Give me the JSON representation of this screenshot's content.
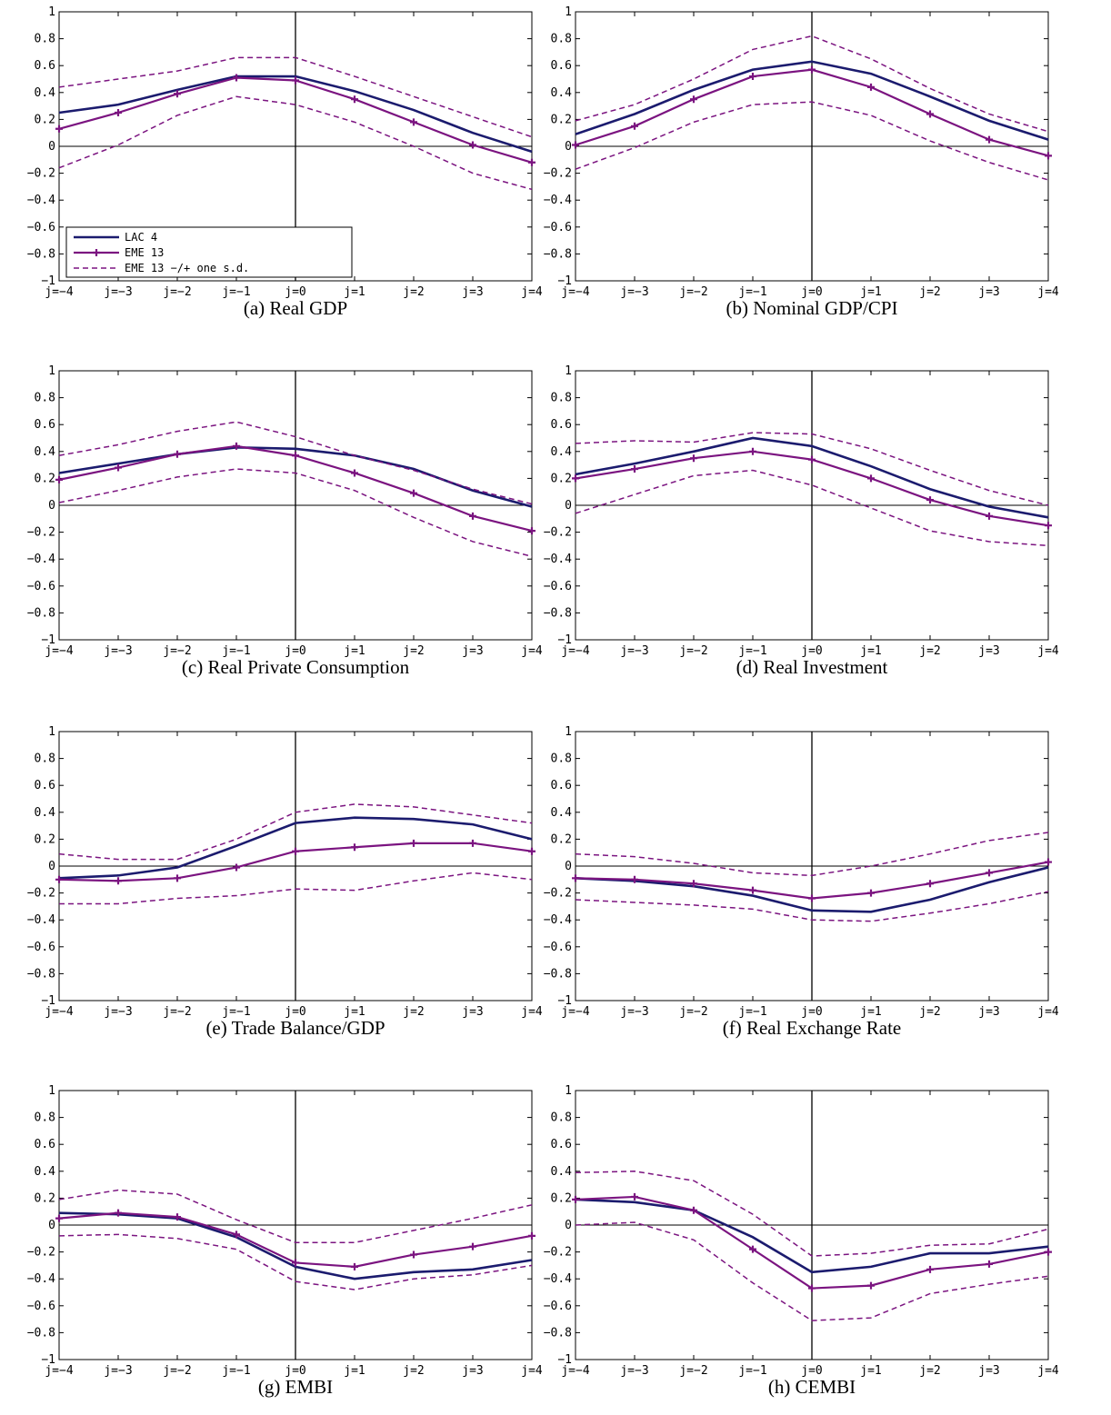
{
  "colors": {
    "lac": "#1b1b6e",
    "eme": "#7b1480",
    "band": "#7b1480",
    "axis": "#000000"
  },
  "legend": {
    "placement": "bottom-left",
    "panel": 0,
    "entries": [
      "LAC 4",
      "EME 13",
      "EME 13 −/+ one s.d."
    ]
  },
  "chart_data": [
    {
      "type": "line",
      "caption": "(a) Real GDP",
      "x": [
        "j=−4",
        "j=−3",
        "j=−2",
        "j=−1",
        "j=0",
        "j=1",
        "j=2",
        "j=3",
        "j=4"
      ],
      "y_ticks": [
        "−1",
        "−0.8",
        "−0.6",
        "−0.4",
        "−0.2",
        "0",
        "0.2",
        "0.4",
        "0.6",
        "0.8",
        "1"
      ],
      "ylim": [
        -1,
        1
      ],
      "series": [
        {
          "name": "LAC 4",
          "style": "solid",
          "values": [
            0.25,
            0.31,
            0.42,
            0.52,
            0.52,
            0.41,
            0.27,
            0.1,
            -0.04
          ]
        },
        {
          "name": "EME 13",
          "style": "marker",
          "values": [
            0.13,
            0.25,
            0.39,
            0.51,
            0.49,
            0.35,
            0.18,
            0.01,
            -0.12
          ]
        },
        {
          "name": "EME 13 −/+ one s.d.",
          "style": "dashed",
          "values": [
            0.44,
            0.5,
            0.56,
            0.66,
            0.66,
            0.52,
            0.37,
            0.22,
            0.07
          ]
        },
        {
          "name": "",
          "style": "dashed",
          "values": [
            -0.16,
            0.01,
            0.23,
            0.37,
            0.31,
            0.18,
            0.0,
            -0.2,
            -0.32
          ]
        }
      ]
    },
    {
      "type": "line",
      "caption": "(b) Nominal GDP/CPI",
      "x": [
        "j=−4",
        "j=−3",
        "j=−2",
        "j=−1",
        "j=0",
        "j=1",
        "j=2",
        "j=3",
        "j=4"
      ],
      "y_ticks": [
        "−1",
        "−0.8",
        "−0.6",
        "−0.4",
        "−0.2",
        "0",
        "0.2",
        "0.4",
        "0.6",
        "0.8",
        "1"
      ],
      "ylim": [
        -1,
        1
      ],
      "series": [
        {
          "name": "LAC 4",
          "style": "solid",
          "values": [
            0.09,
            0.24,
            0.42,
            0.57,
            0.63,
            0.54,
            0.37,
            0.19,
            0.05
          ]
        },
        {
          "name": "EME 13",
          "style": "marker",
          "values": [
            0.01,
            0.15,
            0.35,
            0.52,
            0.57,
            0.44,
            0.24,
            0.05,
            -0.07
          ]
        },
        {
          "name": "",
          "style": "dashed",
          "values": [
            0.19,
            0.31,
            0.5,
            0.72,
            0.82,
            0.65,
            0.43,
            0.24,
            0.11
          ]
        },
        {
          "name": "",
          "style": "dashed",
          "values": [
            -0.17,
            -0.01,
            0.18,
            0.31,
            0.33,
            0.23,
            0.04,
            -0.12,
            -0.25
          ]
        }
      ]
    },
    {
      "type": "line",
      "caption": "(c) Real Private Consumption",
      "x": [
        "j=−4",
        "j=−3",
        "j=−2",
        "j=−1",
        "j=0",
        "j=1",
        "j=2",
        "j=3",
        "j=4"
      ],
      "y_ticks": [
        "−1",
        "−0.8",
        "−0.6",
        "−0.4",
        "−0.2",
        "0",
        "0.2",
        "0.4",
        "0.6",
        "0.8",
        "1"
      ],
      "ylim": [
        -1,
        1
      ],
      "series": [
        {
          "name": "LAC 4",
          "style": "solid",
          "values": [
            0.24,
            0.31,
            0.38,
            0.43,
            0.42,
            0.37,
            0.27,
            0.11,
            -0.01
          ]
        },
        {
          "name": "EME 13",
          "style": "marker",
          "values": [
            0.19,
            0.28,
            0.38,
            0.44,
            0.37,
            0.24,
            0.09,
            -0.08,
            -0.19
          ]
        },
        {
          "name": "",
          "style": "dashed",
          "values": [
            0.37,
            0.45,
            0.55,
            0.62,
            0.51,
            0.37,
            0.26,
            0.12,
            0.01
          ]
        },
        {
          "name": "",
          "style": "dashed",
          "values": [
            0.02,
            0.11,
            0.21,
            0.27,
            0.24,
            0.11,
            -0.09,
            -0.27,
            -0.38
          ]
        }
      ]
    },
    {
      "type": "line",
      "caption": "(d) Real Investment",
      "x": [
        "j=−4",
        "j=−3",
        "j=−2",
        "j=−1",
        "j=0",
        "j=1",
        "j=2",
        "j=3",
        "j=4"
      ],
      "y_ticks": [
        "−1",
        "−0.8",
        "−0.6",
        "−0.4",
        "−0.2",
        "0",
        "0.2",
        "0.4",
        "0.6",
        "0.8",
        "1"
      ],
      "ylim": [
        -1,
        1
      ],
      "series": [
        {
          "name": "LAC 4",
          "style": "solid",
          "values": [
            0.23,
            0.31,
            0.4,
            0.5,
            0.44,
            0.29,
            0.12,
            -0.01,
            -0.09
          ]
        },
        {
          "name": "EME 13",
          "style": "marker",
          "values": [
            0.2,
            0.27,
            0.35,
            0.4,
            0.34,
            0.2,
            0.04,
            -0.08,
            -0.15
          ]
        },
        {
          "name": "",
          "style": "dashed",
          "values": [
            0.46,
            0.48,
            0.47,
            0.54,
            0.53,
            0.42,
            0.26,
            0.11,
            0.0
          ]
        },
        {
          "name": "",
          "style": "dashed",
          "values": [
            -0.06,
            0.08,
            0.22,
            0.26,
            0.15,
            -0.02,
            -0.19,
            -0.27,
            -0.3
          ]
        }
      ]
    },
    {
      "type": "line",
      "caption": "(e) Trade Balance/GDP",
      "x": [
        "j=−4",
        "j=−3",
        "j=−2",
        "j=−1",
        "j=0",
        "j=1",
        "j=2",
        "j=3",
        "j=4"
      ],
      "y_ticks": [
        "−1",
        "−0.8",
        "−0.6",
        "−0.4",
        "−0.2",
        "0",
        "0.2",
        "0.4",
        "0.6",
        "0.8",
        "1"
      ],
      "ylim": [
        -1,
        1
      ],
      "series": [
        {
          "name": "LAC 4",
          "style": "solid",
          "values": [
            -0.09,
            -0.07,
            -0.01,
            0.15,
            0.32,
            0.36,
            0.35,
            0.31,
            0.2
          ]
        },
        {
          "name": "EME 13",
          "style": "marker",
          "values": [
            -0.1,
            -0.11,
            -0.09,
            -0.01,
            0.11,
            0.14,
            0.17,
            0.17,
            0.11
          ]
        },
        {
          "name": "",
          "style": "dashed",
          "values": [
            0.09,
            0.05,
            0.05,
            0.2,
            0.4,
            0.46,
            0.44,
            0.38,
            0.32
          ]
        },
        {
          "name": "",
          "style": "dashed",
          "values": [
            -0.28,
            -0.28,
            -0.24,
            -0.22,
            -0.17,
            -0.18,
            -0.11,
            -0.05,
            -0.1
          ]
        }
      ]
    },
    {
      "type": "line",
      "caption": "(f) Real Exchange Rate",
      "x": [
        "j=−4",
        "j=−3",
        "j=−2",
        "j=−1",
        "j=0",
        "j=1",
        "j=2",
        "j=3",
        "j=4"
      ],
      "y_ticks": [
        "−1",
        "−0.8",
        "−0.6",
        "−0.4",
        "−0.2",
        "0",
        "0.2",
        "0.4",
        "0.6",
        "0.8",
        "1"
      ],
      "ylim": [
        -1,
        1
      ],
      "series": [
        {
          "name": "LAC 4",
          "style": "solid",
          "values": [
            -0.09,
            -0.11,
            -0.15,
            -0.22,
            -0.33,
            -0.34,
            -0.25,
            -0.12,
            -0.01
          ]
        },
        {
          "name": "EME 13",
          "style": "marker",
          "values": [
            -0.09,
            -0.1,
            -0.13,
            -0.18,
            -0.24,
            -0.2,
            -0.13,
            -0.05,
            0.03
          ]
        },
        {
          "name": "",
          "style": "dashed",
          "values": [
            0.09,
            0.07,
            0.02,
            -0.05,
            -0.07,
            0.0,
            0.09,
            0.19,
            0.25
          ]
        },
        {
          "name": "",
          "style": "dashed",
          "values": [
            -0.25,
            -0.27,
            -0.29,
            -0.32,
            -0.4,
            -0.41,
            -0.35,
            -0.28,
            -0.19
          ]
        }
      ]
    },
    {
      "type": "line",
      "caption": "(g) EMBI",
      "x": [
        "j=−4",
        "j=−3",
        "j=−2",
        "j=−1",
        "j=0",
        "j=1",
        "j=2",
        "j=3",
        "j=4"
      ],
      "y_ticks": [
        "−1",
        "−0.8",
        "−0.6",
        "−0.4",
        "−0.2",
        "0",
        "0.2",
        "0.4",
        "0.6",
        "0.8",
        "1"
      ],
      "ylim": [
        -1,
        1
      ],
      "series": [
        {
          "name": "LAC 4",
          "style": "solid",
          "values": [
            0.09,
            0.08,
            0.05,
            -0.09,
            -0.31,
            -0.4,
            -0.35,
            -0.33,
            -0.26
          ]
        },
        {
          "name": "EME 13",
          "style": "marker",
          "values": [
            0.05,
            0.09,
            0.06,
            -0.07,
            -0.28,
            -0.31,
            -0.22,
            -0.16,
            -0.08
          ]
        },
        {
          "name": "",
          "style": "dashed",
          "values": [
            0.19,
            0.26,
            0.23,
            0.04,
            -0.13,
            -0.13,
            -0.04,
            0.05,
            0.15
          ]
        },
        {
          "name": "",
          "style": "dashed",
          "values": [
            -0.08,
            -0.07,
            -0.1,
            -0.18,
            -0.42,
            -0.48,
            -0.4,
            -0.37,
            -0.3
          ]
        }
      ]
    },
    {
      "type": "line",
      "caption": "(h) CEMBI",
      "x": [
        "j=−4",
        "j=−3",
        "j=−2",
        "j=−1",
        "j=0",
        "j=1",
        "j=2",
        "j=3",
        "j=4"
      ],
      "y_ticks": [
        "−1",
        "−0.8",
        "−0.6",
        "−0.4",
        "−0.2",
        "0",
        "0.2",
        "0.4",
        "0.6",
        "0.8",
        "1"
      ],
      "ylim": [
        -1,
        1
      ],
      "series": [
        {
          "name": "LAC 4",
          "style": "solid",
          "values": [
            0.19,
            0.17,
            0.11,
            -0.09,
            -0.35,
            -0.31,
            -0.21,
            -0.21,
            -0.16
          ]
        },
        {
          "name": "EME 13",
          "style": "marker",
          "values": [
            0.19,
            0.21,
            0.11,
            -0.18,
            -0.47,
            -0.45,
            -0.33,
            -0.29,
            -0.2
          ]
        },
        {
          "name": "",
          "style": "dashed",
          "values": [
            0.39,
            0.4,
            0.33,
            0.08,
            -0.23,
            -0.21,
            -0.15,
            -0.14,
            -0.03
          ]
        },
        {
          "name": "",
          "style": "dashed",
          "values": [
            0.0,
            0.02,
            -0.11,
            -0.43,
            -0.71,
            -0.69,
            -0.51,
            -0.44,
            -0.38
          ]
        }
      ]
    }
  ]
}
